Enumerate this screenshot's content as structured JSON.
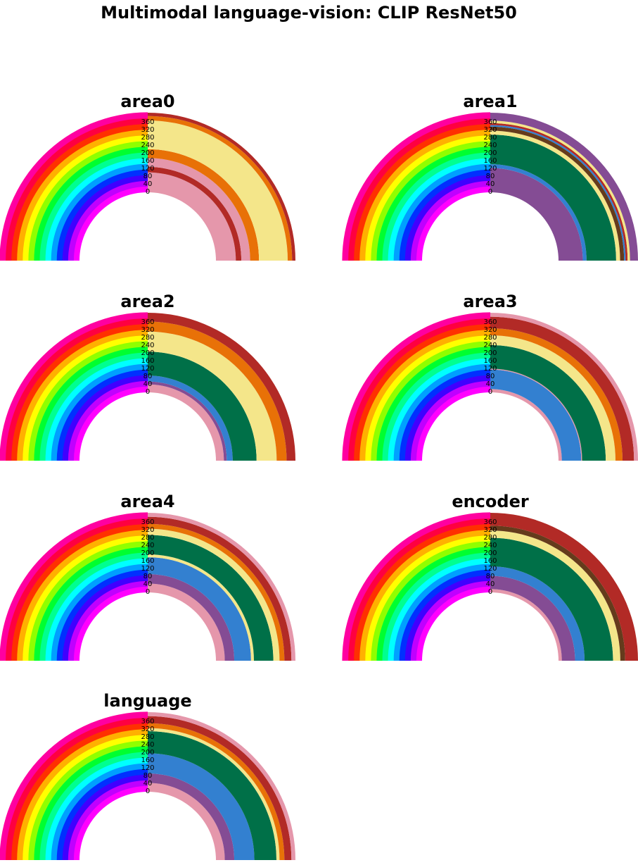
{
  "title": "Multimodal language-vision: CLIP ResNet50",
  "chart_data": [
    {
      "type": "radial-bar",
      "title": "area0",
      "radial_ticks": [
        "0",
        "40",
        "80",
        "120",
        "160",
        "200",
        "240",
        "280",
        "320",
        "360"
      ],
      "rmax": 360,
      "bands": [
        {
          "r0": 0,
          "r1": 90,
          "color": "#e597ab"
        },
        {
          "r0": 90,
          "r1": 115,
          "color": "#b22a26"
        },
        {
          "r0": 115,
          "r1": 155,
          "color": "#e597ab"
        },
        {
          "r0": 155,
          "r1": 195,
          "color": "#e87107"
        },
        {
          "r0": 195,
          "r1": 325,
          "color": "#f4e68a"
        },
        {
          "r0": 325,
          "r1": 345,
          "color": "#e87107"
        },
        {
          "r0": 345,
          "r1": 360,
          "color": "#b22a26"
        }
      ]
    },
    {
      "type": "radial-bar",
      "title": "area1",
      "radial_ticks": [
        "0",
        "40",
        "80",
        "120",
        "160",
        "200",
        "240",
        "280",
        "320",
        "360"
      ],
      "rmax": 360,
      "bands": [
        {
          "r0": 0,
          "r1": 110,
          "color": "#844c94"
        },
        {
          "r0": 110,
          "r1": 127,
          "color": "#3380d0"
        },
        {
          "r0": 127,
          "r1": 261,
          "color": "#007048"
        },
        {
          "r0": 261,
          "r1": 279,
          "color": "#f4e68a"
        },
        {
          "r0": 279,
          "r1": 297,
          "color": "#653b1c"
        },
        {
          "r0": 297,
          "r1": 304,
          "color": "#3380d0"
        },
        {
          "r0": 304,
          "r1": 313,
          "color": "#b22a26"
        },
        {
          "r0": 313,
          "r1": 324,
          "color": "#f4e68a"
        },
        {
          "r0": 324,
          "r1": 360,
          "color": "#844c94"
        }
      ]
    },
    {
      "type": "radial-bar",
      "title": "area2",
      "radial_ticks": [
        "0",
        "40",
        "80",
        "120",
        "160",
        "200",
        "240",
        "280",
        "320",
        "360"
      ],
      "rmax": 360,
      "bands": [
        {
          "r0": 0,
          "r1": 36,
          "color": "#e597ab"
        },
        {
          "r0": 36,
          "r1": 49,
          "color": "#844c94"
        },
        {
          "r0": 49,
          "r1": 76,
          "color": "#3380d0"
        },
        {
          "r0": 76,
          "r1": 184,
          "color": "#007048"
        },
        {
          "r0": 184,
          "r1": 275,
          "color": "#f4e68a"
        },
        {
          "r0": 275,
          "r1": 320,
          "color": "#e87107"
        },
        {
          "r0": 320,
          "r1": 360,
          "color": "#b22a26"
        }
      ]
    },
    {
      "type": "radial-bar",
      "title": "area3",
      "radial_ticks": [
        "0",
        "40",
        "80",
        "120",
        "160",
        "200",
        "240",
        "280",
        "320",
        "360"
      ],
      "rmax": 360,
      "bands": [
        {
          "r0": 0,
          "r1": 15,
          "color": "#e597ab"
        },
        {
          "r0": 15,
          "r1": 103,
          "color": "#3380d0"
        },
        {
          "r0": 103,
          "r1": 107,
          "color": "#e597ab"
        },
        {
          "r0": 107,
          "r1": 214,
          "color": "#007048"
        },
        {
          "r0": 214,
          "r1": 258,
          "color": "#f4e68a"
        },
        {
          "r0": 258,
          "r1": 290,
          "color": "#e87107"
        },
        {
          "r0": 290,
          "r1": 342,
          "color": "#b22a26"
        },
        {
          "r0": 342,
          "r1": 360,
          "color": "#e597ab"
        }
      ]
    },
    {
      "type": "radial-bar",
      "title": "area4",
      "radial_ticks": [
        "0",
        "40",
        "80",
        "120",
        "160",
        "200",
        "240",
        "280",
        "320",
        "360"
      ],
      "rmax": 360,
      "bands": [
        {
          "r0": 0,
          "r1": 40,
          "color": "#e597ab"
        },
        {
          "r0": 40,
          "r1": 83,
          "color": "#844c94"
        },
        {
          "r0": 83,
          "r1": 159,
          "color": "#3380d0"
        },
        {
          "r0": 159,
          "r1": 172,
          "color": "#f4e68a"
        },
        {
          "r0": 172,
          "r1": 260,
          "color": "#007048"
        },
        {
          "r0": 260,
          "r1": 288,
          "color": "#f4e68a"
        },
        {
          "r0": 288,
          "r1": 310,
          "color": "#e87107"
        },
        {
          "r0": 310,
          "r1": 342,
          "color": "#b22a26"
        },
        {
          "r0": 342,
          "r1": 360,
          "color": "#e597ab"
        }
      ]
    },
    {
      "type": "radial-bar",
      "title": "encoder",
      "radial_ticks": [
        "0",
        "40",
        "80",
        "120",
        "160",
        "200",
        "240",
        "280",
        "320",
        "360"
      ],
      "rmax": 360,
      "bands": [
        {
          "r0": 0,
          "r1": 15,
          "color": "#e597ab"
        },
        {
          "r0": 15,
          "r1": 75,
          "color": "#844c94"
        },
        {
          "r0": 75,
          "r1": 118,
          "color": "#3380d0"
        },
        {
          "r0": 118,
          "r1": 247,
          "color": "#007048"
        },
        {
          "r0": 247,
          "r1": 280,
          "color": "#f4e68a"
        },
        {
          "r0": 280,
          "r1": 302,
          "color": "#653b1c"
        },
        {
          "r0": 302,
          "r1": 360,
          "color": "#b22a26"
        }
      ]
    },
    {
      "type": "radial-bar",
      "title": "language",
      "radial_ticks": [
        "0",
        "40",
        "80",
        "120",
        "160",
        "200",
        "240",
        "280",
        "320",
        "360"
      ],
      "rmax": 360,
      "bands": [
        {
          "r0": 0,
          "r1": 40,
          "color": "#e597ab"
        },
        {
          "r0": 40,
          "r1": 83,
          "color": "#844c94"
        },
        {
          "r0": 83,
          "r1": 174,
          "color": "#3380d0"
        },
        {
          "r0": 174,
          "r1": 274,
          "color": "#007048"
        },
        {
          "r0": 274,
          "r1": 288,
          "color": "#f4e68a"
        },
        {
          "r0": 288,
          "r1": 310,
          "color": "#e87107"
        },
        {
          "r0": 310,
          "r1": 342,
          "color": "#b22a26"
        },
        {
          "r0": 342,
          "r1": 360,
          "color": "#e597ab"
        }
      ]
    }
  ]
}
